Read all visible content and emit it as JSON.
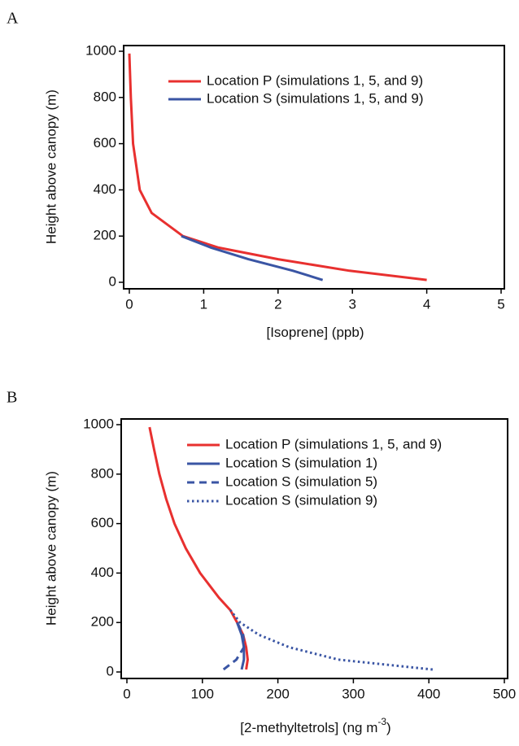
{
  "chart_data": [
    {
      "type": "line",
      "panel_label": "A",
      "xlabel": {
        "text": "[Isoprene] (ppb)"
      },
      "ylabel": "Height above canopy (m)",
      "xlim": [
        0,
        5
      ],
      "xticks": [
        0,
        1,
        2,
        3,
        4,
        5
      ],
      "ylim": [
        0,
        1000
      ],
      "yticks": [
        0,
        200,
        400,
        600,
        800,
        1000
      ],
      "series": [
        {
          "name": "Location P (simulations 1, 5, and 9)",
          "color": "#e8302f",
          "dash": "solid",
          "x": [
            4.0,
            2.96,
            2.0,
            1.2,
            0.72,
            0.3,
            0.14,
            0.05,
            0.02,
            0.0
          ],
          "values": [
            10,
            50,
            100,
            150,
            200,
            300,
            400,
            600,
            800,
            990
          ]
        },
        {
          "name": "Location S (simulations 1, 5, and 9)",
          "color": "#3a55a4",
          "dash": "solid",
          "x": [
            2.6,
            2.2,
            1.6,
            1.1,
            0.7
          ],
          "values": [
            10,
            50,
            100,
            150,
            200
          ]
        }
      ]
    },
    {
      "type": "line",
      "panel_label": "B",
      "xlabel": {
        "text": "[2-methyltetrols] (ng m",
        "sup": "-3",
        "tail": ")"
      },
      "ylabel": "Height above canopy (m)",
      "xlim": [
        0,
        500
      ],
      "xticks": [
        0,
        100,
        200,
        300,
        400,
        500
      ],
      "ylim": [
        0,
        1000
      ],
      "yticks": [
        0,
        200,
        400,
        600,
        800,
        1000
      ],
      "series": [
        {
          "name": "Location P (simulations 1, 5, and 9)",
          "color": "#e8302f",
          "dash": "solid",
          "x": [
            158,
            160,
            158,
            154,
            146,
            137,
            122,
            97,
            78,
            63,
            52,
            43,
            36,
            30
          ],
          "values": [
            10,
            50,
            100,
            150,
            200,
            250,
            300,
            400,
            500,
            600,
            700,
            800,
            900,
            990
          ]
        },
        {
          "name": "Location S (simulation 1)",
          "color": "#3a55a4",
          "dash": "solid",
          "x": [
            152,
            155,
            155,
            152,
            146
          ],
          "values": [
            10,
            50,
            100,
            150,
            200
          ]
        },
        {
          "name": "Location S (simulation 5)",
          "color": "#3a55a4",
          "dash": "dashed",
          "x": [
            128,
            145,
            155,
            154,
            146
          ],
          "values": [
            10,
            50,
            100,
            150,
            200
          ]
        },
        {
          "name": "Location S (simulation 9)",
          "color": "#3a55a4",
          "dash": "dotted",
          "x": [
            405,
            280,
            215,
            175,
            150,
            137
          ],
          "values": [
            10,
            50,
            100,
            150,
            200,
            250
          ]
        }
      ]
    }
  ]
}
